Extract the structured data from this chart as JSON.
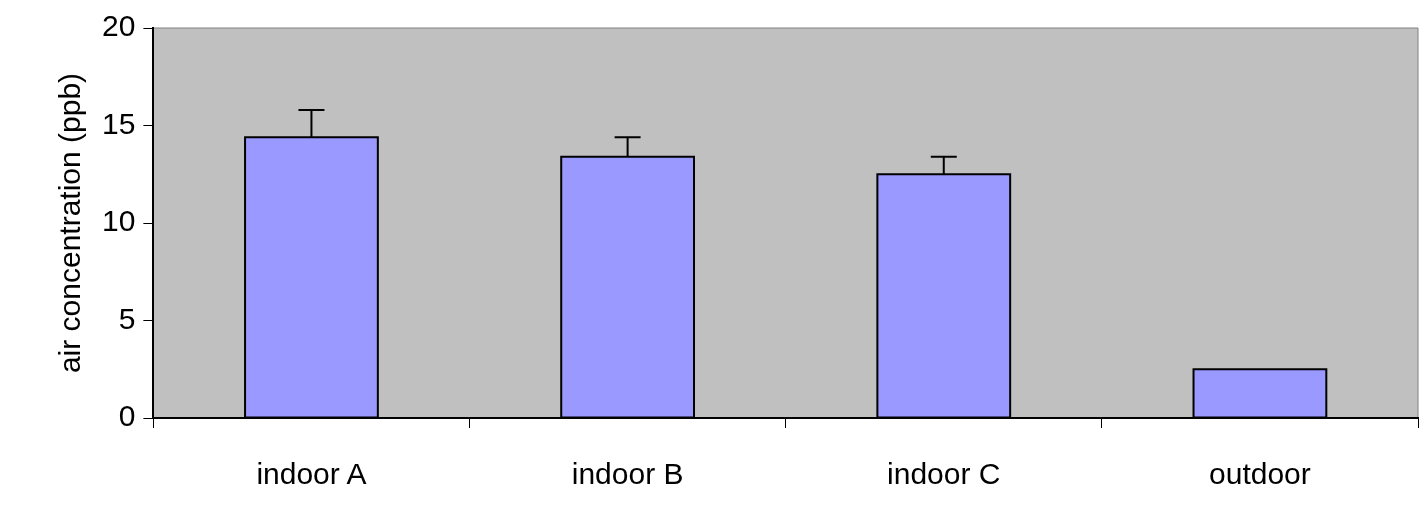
{
  "chart_data": {
    "type": "bar",
    "ylabel": "air concentration (ppb)",
    "categories": [
      "indoor A",
      "indoor B",
      "indoor C",
      "outdoor"
    ],
    "values": [
      14.4,
      13.4,
      12.5,
      2.5
    ],
    "errors": [
      [
        14.4,
        15.8
      ],
      [
        13.4,
        14.4
      ],
      [
        12.5,
        13.4
      ],
      null
    ],
    "color": "#9999ff",
    "ylim": [
      0,
      20
    ],
    "yticks": [
      0,
      5,
      10,
      15,
      20
    ],
    "grid": false,
    "legend": false
  }
}
